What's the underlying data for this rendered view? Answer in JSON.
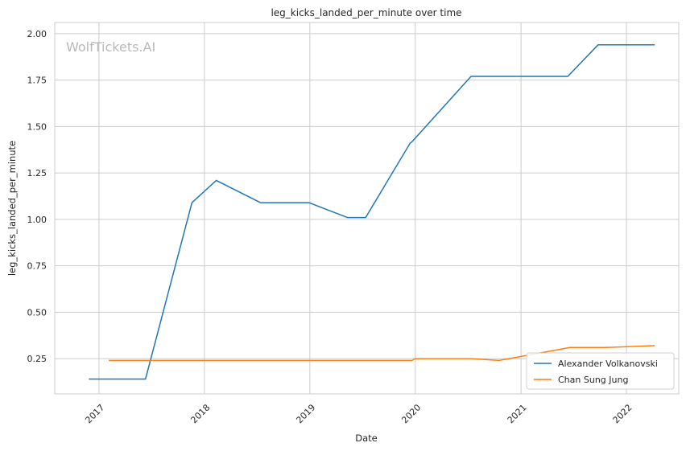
{
  "chart_data": {
    "type": "line",
    "title": "leg_kicks_landed_per_minute over time",
    "xlabel": "Date",
    "ylabel": "leg_kicks_landed_per_minute",
    "watermark": "WolfTickets.AI",
    "xlim": [
      "2016-08-01",
      "2022-07-01"
    ],
    "ylim": [
      0.06,
      2.06
    ],
    "x_ticks": [
      {
        "date": "2017-01-01",
        "label": "2017"
      },
      {
        "date": "2018-01-01",
        "label": "2018"
      },
      {
        "date": "2019-01-01",
        "label": "2019"
      },
      {
        "date": "2020-01-01",
        "label": "2020"
      },
      {
        "date": "2021-01-01",
        "label": "2021"
      },
      {
        "date": "2022-01-01",
        "label": "2022"
      }
    ],
    "y_ticks": [
      {
        "value": 0.25,
        "label": "0.25"
      },
      {
        "value": 0.5,
        "label": "0.50"
      },
      {
        "value": 0.75,
        "label": "0.75"
      },
      {
        "value": 1.0,
        "label": "1.00"
      },
      {
        "value": 1.25,
        "label": "1.25"
      },
      {
        "value": 1.5,
        "label": "1.50"
      },
      {
        "value": 1.75,
        "label": "1.75"
      },
      {
        "value": 2.0,
        "label": "2.00"
      }
    ],
    "grid": true,
    "legend_position": "bottom-right",
    "series": [
      {
        "name": "Alexander Volkanovski",
        "color": "#1f77b4",
        "points": [
          {
            "x": "2016-11-27",
            "y": 0.14
          },
          {
            "x": "2017-06-11",
            "y": 0.14
          },
          {
            "x": "2017-11-19",
            "y": 1.09
          },
          {
            "x": "2018-02-11",
            "y": 1.21
          },
          {
            "x": "2018-07-14",
            "y": 1.09
          },
          {
            "x": "2018-12-29",
            "y": 1.09
          },
          {
            "x": "2019-05-11",
            "y": 1.01
          },
          {
            "x": "2019-07-13",
            "y": 1.01
          },
          {
            "x": "2019-12-14",
            "y": 1.41
          },
          {
            "x": "2019-12-22",
            "y": 1.42
          },
          {
            "x": "2020-07-12",
            "y": 1.77
          },
          {
            "x": "2021-06-12",
            "y": 1.77
          },
          {
            "x": "2021-09-25",
            "y": 1.94
          },
          {
            "x": "2022-04-09",
            "y": 1.94
          }
        ]
      },
      {
        "name": "Chan Sung Jung",
        "color": "#ff7f0e",
        "points": [
          {
            "x": "2017-02-04",
            "y": 0.24
          },
          {
            "x": "2019-12-21",
            "y": 0.24
          },
          {
            "x": "2020-01-01",
            "y": 0.25
          },
          {
            "x": "2020-07-12",
            "y": 0.25
          },
          {
            "x": "2020-10-17",
            "y": 0.24
          },
          {
            "x": "2021-06-19",
            "y": 0.31
          },
          {
            "x": "2021-10-16",
            "y": 0.31
          },
          {
            "x": "2022-04-09",
            "y": 0.32
          }
        ]
      }
    ]
  }
}
